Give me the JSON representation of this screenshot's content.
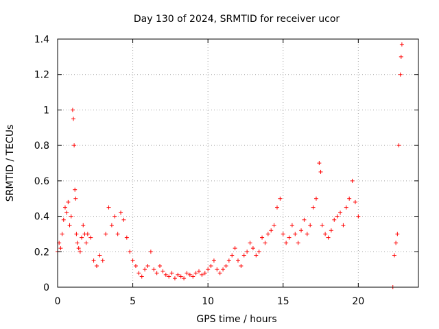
{
  "chart_data": {
    "type": "scatter",
    "title": "Day 130 of 2024, SRMTID for receiver ucor",
    "xlabel": "GPS time / hours",
    "ylabel": "SRMTID / TECUs",
    "xlim": [
      0,
      24
    ],
    "ylim": [
      0,
      1.4
    ],
    "grid": true,
    "marker": "+",
    "color": "#ff0000",
    "x_ticks": [
      0,
      5,
      10,
      15,
      20
    ],
    "x_tick_labels": [
      "0",
      "5",
      "10",
      "15",
      "20"
    ],
    "y_ticks": [
      0,
      0.2,
      0.4,
      0.6,
      0.8,
      1.0,
      1.2,
      1.4
    ],
    "y_tick_labels": [
      "0",
      "0.2",
      "0.4",
      "0.6",
      "0.8",
      "1",
      "1.2",
      "1.4"
    ],
    "series": [
      {
        "name": "SRMTID",
        "x": [
          0.0,
          0.1,
          0.2,
          0.3,
          0.4,
          0.5,
          0.6,
          0.7,
          0.8,
          0.9,
          1.0,
          1.05,
          1.1,
          1.15,
          1.2,
          1.25,
          1.3,
          1.4,
          1.5,
          1.6,
          1.7,
          1.8,
          1.9,
          2.0,
          2.2,
          2.4,
          2.6,
          2.8,
          3.0,
          3.2,
          3.4,
          3.6,
          3.8,
          4.0,
          4.2,
          4.4,
          4.6,
          4.8,
          5.0,
          5.2,
          5.4,
          5.6,
          5.8,
          6.0,
          6.2,
          6.4,
          6.6,
          6.8,
          7.0,
          7.2,
          7.4,
          7.6,
          7.8,
          8.0,
          8.2,
          8.4,
          8.6,
          8.8,
          9.0,
          9.2,
          9.4,
          9.6,
          9.8,
          10.0,
          10.2,
          10.4,
          10.6,
          10.8,
          11.0,
          11.2,
          11.4,
          11.6,
          11.8,
          12.0,
          12.2,
          12.4,
          12.6,
          12.8,
          13.0,
          13.2,
          13.4,
          13.6,
          13.8,
          14.0,
          14.2,
          14.4,
          14.6,
          14.8,
          15.0,
          15.2,
          15.4,
          15.6,
          15.8,
          16.0,
          16.2,
          16.4,
          16.6,
          16.8,
          17.0,
          17.2,
          17.4,
          17.5,
          17.6,
          17.8,
          18.0,
          18.2,
          18.4,
          18.6,
          18.8,
          19.0,
          19.2,
          19.4,
          19.6,
          19.8,
          20.0,
          22.3,
          22.4,
          22.5,
          22.6,
          22.7,
          22.8,
          22.85,
          22.9
        ],
        "y": [
          0.2,
          0.25,
          0.22,
          0.3,
          0.38,
          0.45,
          0.42,
          0.48,
          0.35,
          0.4,
          1.0,
          0.95,
          0.8,
          0.55,
          0.5,
          0.3,
          0.25,
          0.22,
          0.2,
          0.28,
          0.35,
          0.3,
          0.25,
          0.3,
          0.28,
          0.15,
          0.12,
          0.18,
          0.15,
          0.3,
          0.45,
          0.35,
          0.4,
          0.3,
          0.42,
          0.38,
          0.28,
          0.2,
          0.15,
          0.12,
          0.08,
          0.06,
          0.1,
          0.12,
          0.2,
          0.1,
          0.08,
          0.12,
          0.09,
          0.07,
          0.06,
          0.08,
          0.05,
          0.07,
          0.06,
          0.05,
          0.08,
          0.07,
          0.06,
          0.08,
          0.09,
          0.07,
          0.08,
          0.1,
          0.12,
          0.15,
          0.1,
          0.08,
          0.1,
          0.12,
          0.15,
          0.18,
          0.22,
          0.15,
          0.12,
          0.18,
          0.2,
          0.25,
          0.22,
          0.18,
          0.2,
          0.28,
          0.25,
          0.3,
          0.32,
          0.35,
          0.45,
          0.5,
          0.3,
          0.25,
          0.28,
          0.35,
          0.3,
          0.25,
          0.32,
          0.38,
          0.3,
          0.35,
          0.45,
          0.5,
          0.7,
          0.65,
          0.35,
          0.3,
          0.28,
          0.32,
          0.38,
          0.4,
          0.42,
          0.35,
          0.45,
          0.5,
          0.6,
          0.48,
          0.4,
          0.0,
          0.18,
          0.25,
          0.3,
          0.8,
          1.2,
          1.3,
          1.37
        ]
      }
    ]
  }
}
